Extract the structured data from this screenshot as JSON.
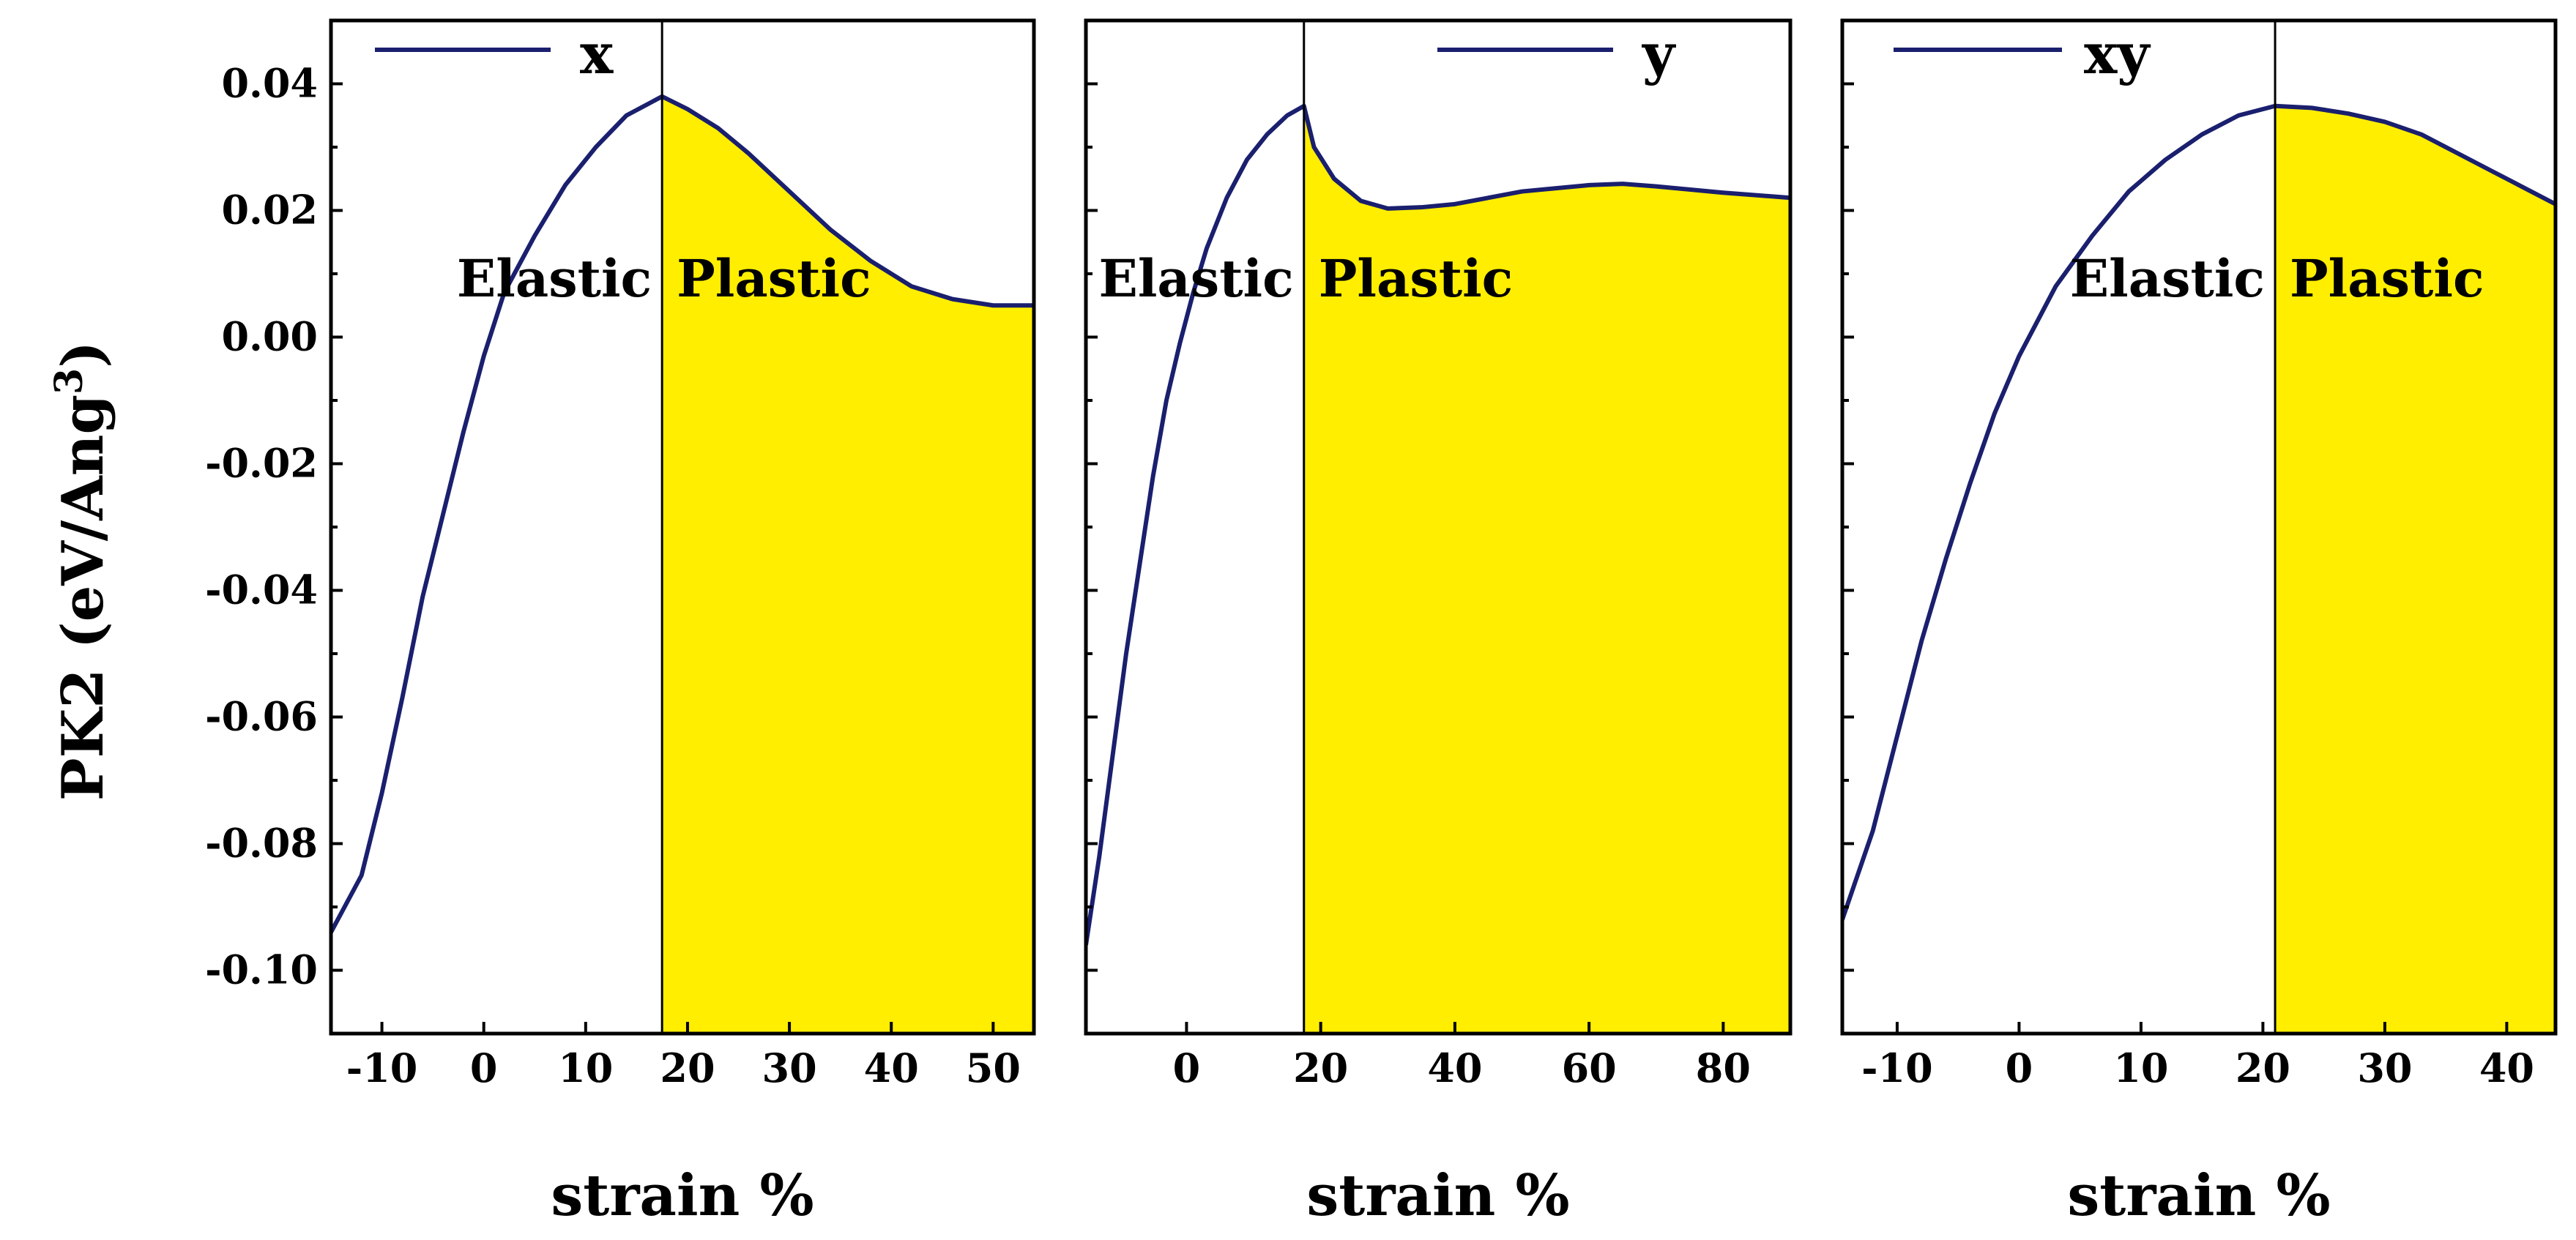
{
  "figure": {
    "ylabel_main": "PK2 (eV/Ang",
    "ylabel_sup": "3",
    "ylabel_close": ")"
  },
  "colors": {
    "curve": "#1a1f6e",
    "fill": "#ffee00",
    "frame": "#000000"
  },
  "chart_data": [
    {
      "type": "line",
      "title": "",
      "legend": "x",
      "xlabel": "strain %",
      "ylabel": "PK2 (eV/Ang^3)",
      "xlim": [
        -15,
        54
      ],
      "ylim": [
        -0.11,
        0.05
      ],
      "xticks": [
        -10,
        0,
        10,
        20,
        30,
        40,
        50
      ],
      "yticks": [
        0.04,
        0.02,
        0.0,
        -0.02,
        -0.04,
        -0.06,
        -0.08,
        -0.1
      ],
      "ytick_labels": [
        "0.04",
        "0.02",
        "0.00",
        "-0.02",
        "-0.04",
        "-0.06",
        "-0.08",
        "-0.10"
      ],
      "divider_x": 17.5,
      "left_region": "Elastic",
      "right_region": "Plastic",
      "series": [
        {
          "name": "x",
          "x": [
            -15,
            -12,
            -10,
            -8,
            -6,
            -4,
            -2,
            0,
            2,
            5,
            8,
            11,
            14,
            17.5,
            20,
            23,
            26,
            30,
            34,
            38,
            42,
            46,
            50,
            54
          ],
          "y": [
            -0.094,
            -0.085,
            -0.072,
            -0.057,
            -0.041,
            -0.028,
            -0.015,
            -0.003,
            0.007,
            0.016,
            0.024,
            0.03,
            0.035,
            0.038,
            0.036,
            0.033,
            0.029,
            0.023,
            0.017,
            0.012,
            0.008,
            0.006,
            0.005,
            0.005
          ]
        }
      ]
    },
    {
      "type": "line",
      "title": "",
      "legend": "y",
      "xlabel": "strain %",
      "ylabel": "PK2 (eV/Ang^3)",
      "xlim": [
        -15,
        90
      ],
      "ylim": [
        -0.11,
        0.05
      ],
      "xticks": [
        0,
        20,
        40,
        60,
        80
      ],
      "yticks": [
        0.04,
        0.02,
        0.0,
        -0.02,
        -0.04,
        -0.06,
        -0.08,
        -0.1
      ],
      "ytick_labels": [
        "",
        "",
        "",
        "",
        "",
        "",
        "",
        ""
      ],
      "divider_x": 17.5,
      "left_region": "Elastic",
      "right_region": "Plastic",
      "series": [
        {
          "name": "y",
          "x": [
            -15,
            -13,
            -11,
            -9,
            -7,
            -5,
            -3,
            -1,
            1,
            3,
            6,
            9,
            12,
            15,
            17.5,
            19,
            22,
            26,
            30,
            35,
            40,
            50,
            60,
            65,
            70,
            80,
            90
          ],
          "y": [
            -0.096,
            -0.082,
            -0.066,
            -0.05,
            -0.036,
            -0.022,
            -0.01,
            -0.001,
            0.007,
            0.014,
            0.022,
            0.028,
            0.032,
            0.035,
            0.0365,
            0.03,
            0.025,
            0.0215,
            0.0203,
            0.0205,
            0.021,
            0.023,
            0.024,
            0.0242,
            0.0238,
            0.0228,
            0.022
          ]
        }
      ]
    },
    {
      "type": "line",
      "title": "",
      "legend": "xy",
      "xlabel": "strain %",
      "ylabel": "PK2 (eV/Ang^3)",
      "xlim": [
        -14.5,
        44
      ],
      "ylim": [
        -0.11,
        0.05
      ],
      "xticks": [
        -10,
        0,
        10,
        20,
        30,
        40
      ],
      "yticks": [
        0.04,
        0.02,
        0.0,
        -0.02,
        -0.04,
        -0.06,
        -0.08,
        -0.1
      ],
      "ytick_labels": [
        "",
        "",
        "",
        "",
        "",
        "",
        "",
        ""
      ],
      "divider_x": 21,
      "left_region": "Elastic",
      "right_region": "Plastic",
      "series": [
        {
          "name": "xy",
          "x": [
            -14.5,
            -12,
            -10,
            -8,
            -6,
            -4,
            -2,
            0,
            3,
            6,
            9,
            12,
            15,
            18,
            21,
            24,
            27,
            30,
            33,
            36,
            39,
            42,
            44
          ],
          "y": [
            -0.092,
            -0.078,
            -0.063,
            -0.048,
            -0.035,
            -0.023,
            -0.012,
            -0.003,
            0.008,
            0.016,
            0.023,
            0.028,
            0.032,
            0.035,
            0.0365,
            0.0362,
            0.0353,
            0.034,
            0.032,
            0.029,
            0.026,
            0.023,
            0.021
          ]
        }
      ]
    }
  ]
}
